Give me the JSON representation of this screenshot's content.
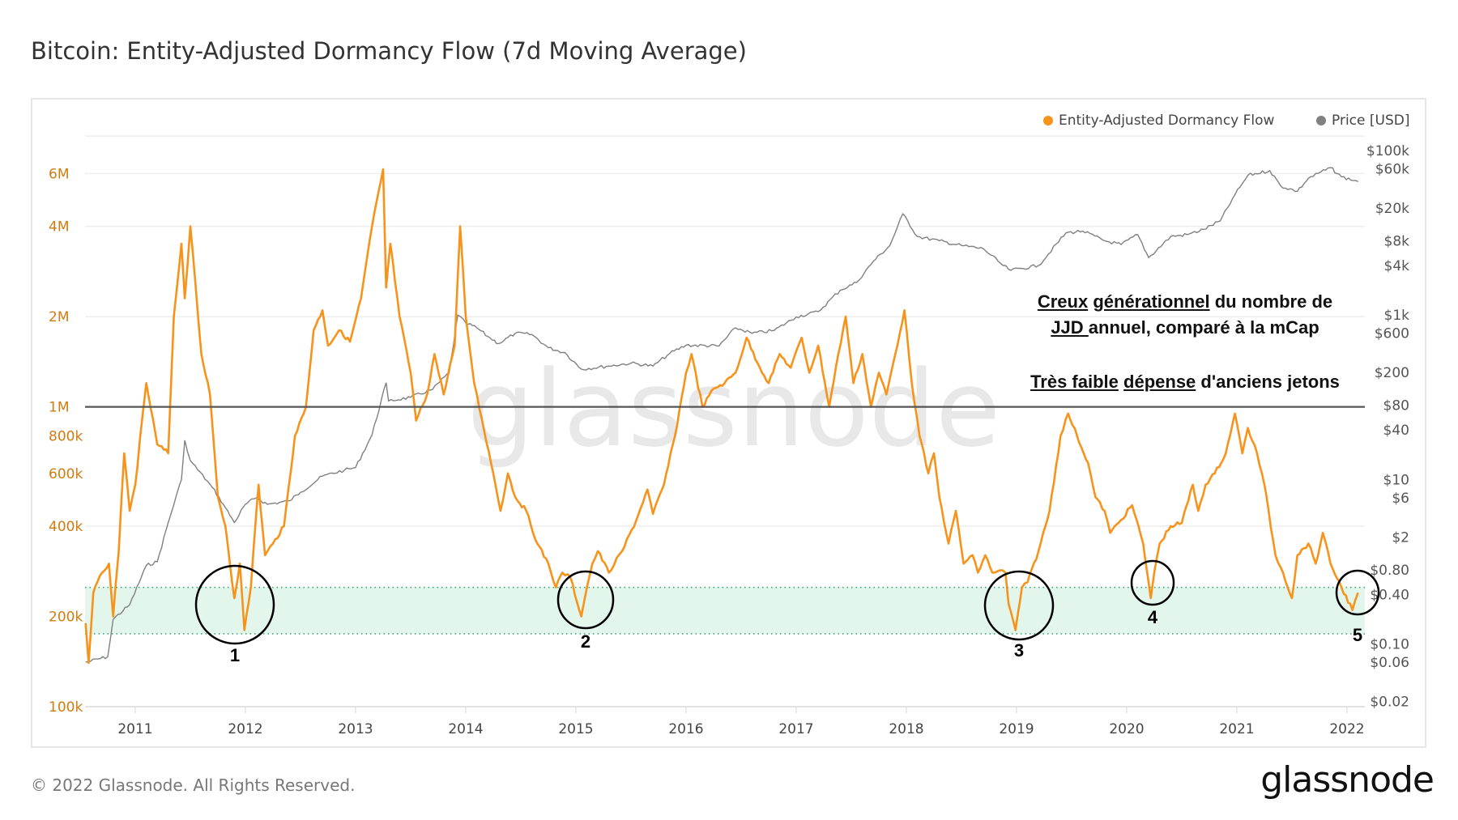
{
  "title": "Bitcoin: Entity-Adjusted Dormancy Flow (7d Moving Average)",
  "footer": "© 2022 Glassnode. All Rights Reserved.",
  "logo": "glassnode",
  "watermark": "glassnode",
  "annotations": {
    "line1_u1": "Creux",
    "line1_u2": "générationnel",
    "line1_rest": " du nombre de",
    "line2_u": "JJD ",
    "line2_rest": "annuel, comparé à la mCap",
    "line3_u1": "Très faible",
    "line3_u2": "dépense",
    "line3_rest": " d'anciens jetons",
    "markers": [
      "1",
      "2",
      "3",
      "4",
      "5"
    ]
  },
  "chart_data": {
    "type": "line",
    "title": "Bitcoin: Entity-Adjusted Dormancy Flow (7d Moving Average)",
    "legend_position": "top-right",
    "grid": true,
    "x_ticks": [
      "2011",
      "2012",
      "2013",
      "2014",
      "2015",
      "2016",
      "2017",
      "2018",
      "2019",
      "2020",
      "2021",
      "2022"
    ],
    "y_left": {
      "scale": "log",
      "range": [
        100000,
        8000000
      ],
      "ticks": [
        [
          "100k",
          100000
        ],
        [
          "200k",
          200000
        ],
        [
          "400k",
          400000
        ],
        [
          "600k",
          600000
        ],
        [
          "800k",
          800000
        ],
        [
          "1M",
          1000000
        ],
        [
          "2M",
          2000000
        ],
        [
          "4M",
          4000000
        ],
        [
          "6M",
          6000000
        ]
      ]
    },
    "y_right": {
      "scale": "log",
      "range": [
        0.02,
        100000
      ],
      "ticks": [
        [
          "$100k",
          100000
        ],
        [
          "$60k",
          60000
        ],
        [
          "$20k",
          20000
        ],
        [
          "$8k",
          8000
        ],
        [
          "$4k",
          4000
        ],
        [
          "$1k",
          1000
        ],
        [
          "$600",
          600
        ],
        [
          "$200",
          200
        ],
        [
          "$80",
          80
        ],
        [
          "$40",
          40
        ],
        [
          "$10",
          10
        ],
        [
          "$6",
          6
        ],
        [
          "$2",
          2
        ],
        [
          "$0.80",
          0.8
        ],
        [
          "$0.40",
          0.4
        ],
        [
          "$0.10",
          0.1
        ],
        [
          "$0.06",
          0.06
        ],
        [
          "$0.02",
          0.02
        ]
      ]
    },
    "reference_line": 1000000,
    "band": [
      175000,
      250000
    ],
    "colors": {
      "dormancy": "#f7931a",
      "price": "#808080",
      "band": "#e3f6ec",
      "band_edge": "#22aa66",
      "reference": "#555555"
    },
    "series": [
      {
        "name": "Entity-Adjusted Dormancy Flow",
        "axis": "left",
        "points": [
          [
            "2010-07-19",
            190000
          ],
          [
            "2010-07-29",
            140000
          ],
          [
            "2010-08-14",
            240000
          ],
          [
            "2010-09-13",
            280000
          ],
          [
            "2010-10-05",
            300000
          ],
          [
            "2010-10-19",
            200000
          ],
          [
            "2010-11-07",
            330000
          ],
          [
            "2010-11-25",
            700000
          ],
          [
            "2010-12-13",
            450000
          ],
          [
            "2011-01-01",
            550000
          ],
          [
            "2011-02-07",
            1200000
          ],
          [
            "2011-03-13",
            750000
          ],
          [
            "2011-04-19",
            700000
          ],
          [
            "2011-05-07",
            2000000
          ],
          [
            "2011-06-02",
            3500000
          ],
          [
            "2011-06-13",
            2300000
          ],
          [
            "2011-07-01",
            4000000
          ],
          [
            "2011-07-19",
            2500000
          ],
          [
            "2011-08-07",
            1500000
          ],
          [
            "2011-09-05",
            1100000
          ],
          [
            "2011-10-01",
            500000
          ],
          [
            "2011-10-26",
            400000
          ],
          [
            "2011-11-25",
            230000
          ],
          [
            "2011-12-13",
            300000
          ],
          [
            "2011-12-28",
            180000
          ],
          [
            "2012-01-19",
            250000
          ],
          [
            "2012-02-07",
            450000
          ],
          [
            "2012-02-14",
            550000
          ],
          [
            "2012-03-05",
            320000
          ],
          [
            "2012-04-01",
            350000
          ],
          [
            "2012-05-07",
            400000
          ],
          [
            "2012-06-13",
            800000
          ],
          [
            "2012-07-19",
            1000000
          ],
          [
            "2012-08-14",
            1800000
          ],
          [
            "2012-09-13",
            2100000
          ],
          [
            "2012-10-01",
            1600000
          ],
          [
            "2012-11-07",
            1800000
          ],
          [
            "2012-12-13",
            1650000
          ],
          [
            "2013-01-19",
            2300000
          ],
          [
            "2013-02-25",
            4000000
          ],
          [
            "2013-04-01",
            6200000
          ],
          [
            "2013-04-11",
            2500000
          ],
          [
            "2013-04-25",
            3500000
          ],
          [
            "2013-05-25",
            2000000
          ],
          [
            "2013-07-01",
            1300000
          ],
          [
            "2013-07-19",
            900000
          ],
          [
            "2013-08-25",
            1100000
          ],
          [
            "2013-09-19",
            1500000
          ],
          [
            "2013-10-19",
            1100000
          ],
          [
            "2013-11-25",
            1600000
          ],
          [
            "2013-12-13",
            4000000
          ],
          [
            "2014-01-01",
            2000000
          ],
          [
            "2014-01-29",
            1200000
          ],
          [
            "2014-02-25",
            900000
          ],
          [
            "2014-04-01",
            600000
          ],
          [
            "2014-04-25",
            450000
          ],
          [
            "2014-05-19",
            600000
          ],
          [
            "2014-06-13",
            500000
          ],
          [
            "2014-07-19",
            450000
          ],
          [
            "2014-08-25",
            350000
          ],
          [
            "2014-10-01",
            300000
          ],
          [
            "2014-10-26",
            250000
          ],
          [
            "2014-11-17",
            280000
          ],
          [
            "2014-12-13",
            270000
          ],
          [
            "2015-01-19",
            200000
          ],
          [
            "2015-02-07",
            250000
          ],
          [
            "2015-02-25",
            300000
          ],
          [
            "2015-03-13",
            330000
          ],
          [
            "2015-04-19",
            280000
          ],
          [
            "2015-06-02",
            330000
          ],
          [
            "2015-07-19",
            420000
          ],
          [
            "2015-08-25",
            530000
          ],
          [
            "2015-09-13",
            440000
          ],
          [
            "2015-10-19",
            550000
          ],
          [
            "2015-11-25",
            800000
          ],
          [
            "2016-01-01",
            1300000
          ],
          [
            "2016-01-19",
            1500000
          ],
          [
            "2016-02-25",
            1000000
          ],
          [
            "2016-04-01",
            1150000
          ],
          [
            "2016-05-07",
            1200000
          ],
          [
            "2016-06-13",
            1300000
          ],
          [
            "2016-07-19",
            1700000
          ],
          [
            "2016-08-25",
            1400000
          ],
          [
            "2016-10-01",
            1200000
          ],
          [
            "2016-11-07",
            1500000
          ],
          [
            "2016-12-13",
            1350000
          ],
          [
            "2017-01-19",
            1700000
          ],
          [
            "2017-02-14",
            1300000
          ],
          [
            "2017-03-13",
            1600000
          ],
          [
            "2017-04-19",
            1000000
          ],
          [
            "2017-05-19",
            1500000
          ],
          [
            "2017-06-13",
            2000000
          ],
          [
            "2017-07-08",
            1200000
          ],
          [
            "2017-08-07",
            1500000
          ],
          [
            "2017-09-05",
            1000000
          ],
          [
            "2017-10-01",
            1300000
          ],
          [
            "2017-10-26",
            1100000
          ],
          [
            "2017-11-25",
            1500000
          ],
          [
            "2017-12-25",
            2100000
          ],
          [
            "2018-01-19",
            1200000
          ],
          [
            "2018-02-14",
            800000
          ],
          [
            "2018-03-13",
            600000
          ],
          [
            "2018-04-01",
            700000
          ],
          [
            "2018-04-19",
            500000
          ],
          [
            "2018-05-19",
            350000
          ],
          [
            "2018-06-13",
            450000
          ],
          [
            "2018-07-08",
            300000
          ],
          [
            "2018-08-07",
            320000
          ],
          [
            "2018-08-25",
            280000
          ],
          [
            "2018-09-19",
            320000
          ],
          [
            "2018-10-12",
            280000
          ],
          [
            "2018-11-07",
            285000
          ],
          [
            "2018-11-25",
            280000
          ],
          [
            "2018-12-05",
            220000
          ],
          [
            "2018-12-28",
            180000
          ],
          [
            "2019-01-19",
            250000
          ],
          [
            "2019-02-07",
            260000
          ],
          [
            "2019-03-13",
            330000
          ],
          [
            "2019-04-19",
            450000
          ],
          [
            "2019-05-25",
            800000
          ],
          [
            "2019-06-20",
            950000
          ],
          [
            "2019-07-19",
            800000
          ],
          [
            "2019-08-25",
            650000
          ],
          [
            "2019-09-19",
            500000
          ],
          [
            "2019-10-19",
            450000
          ],
          [
            "2019-11-07",
            380000
          ],
          [
            "2019-12-13",
            420000
          ],
          [
            "2020-01-19",
            470000
          ],
          [
            "2020-02-25",
            350000
          ],
          [
            "2020-03-20",
            230000
          ],
          [
            "2020-04-01",
            280000
          ],
          [
            "2020-04-19",
            350000
          ],
          [
            "2020-05-25",
            400000
          ],
          [
            "2020-07-01",
            410000
          ],
          [
            "2020-08-07",
            550000
          ],
          [
            "2020-08-25",
            450000
          ],
          [
            "2020-09-19",
            550000
          ],
          [
            "2020-10-19",
            600000
          ],
          [
            "2020-11-25",
            700000
          ],
          [
            "2020-12-25",
            950000
          ],
          [
            "2021-01-19",
            700000
          ],
          [
            "2021-02-07",
            850000
          ],
          [
            "2021-03-07",
            700000
          ],
          [
            "2021-04-01",
            550000
          ],
          [
            "2021-05-07",
            320000
          ],
          [
            "2021-06-02",
            280000
          ],
          [
            "2021-07-01",
            230000
          ],
          [
            "2021-07-19",
            320000
          ],
          [
            "2021-08-25",
            350000
          ],
          [
            "2021-09-19",
            300000
          ],
          [
            "2021-10-12",
            380000
          ],
          [
            "2021-11-07",
            300000
          ],
          [
            "2021-12-13",
            250000
          ],
          [
            "2022-01-19",
            210000
          ],
          [
            "2022-02-07",
            240000
          ]
        ]
      },
      {
        "name": "Price [USD]",
        "axis": "right",
        "points": [
          [
            "2010-07-19",
            0.06
          ],
          [
            "2010-10-01",
            0.07
          ],
          [
            "2010-10-19",
            0.2
          ],
          [
            "2010-12-13",
            0.3
          ],
          [
            "2011-02-07",
            0.9
          ],
          [
            "2011-03-13",
            1
          ],
          [
            "2011-04-19",
            3
          ],
          [
            "2011-06-02",
            10
          ],
          [
            "2011-06-13",
            30
          ],
          [
            "2011-07-01",
            17
          ],
          [
            "2011-09-13",
            8
          ],
          [
            "2011-10-19",
            5
          ],
          [
            "2011-11-25",
            3
          ],
          [
            "2012-01-01",
            5
          ],
          [
            "2012-02-07",
            6
          ],
          [
            "2012-03-13",
            5
          ],
          [
            "2012-05-25",
            5.5
          ],
          [
            "2012-07-01",
            7
          ],
          [
            "2012-09-13",
            11
          ],
          [
            "2012-11-25",
            13
          ],
          [
            "2013-01-01",
            14
          ],
          [
            "2013-02-25",
            35
          ],
          [
            "2013-04-11",
            150
          ],
          [
            "2013-04-19",
            90
          ],
          [
            "2013-07-01",
            100
          ],
          [
            "2013-09-13",
            125
          ],
          [
            "2013-11-07",
            200
          ],
          [
            "2013-12-05",
            1000
          ],
          [
            "2014-01-01",
            800
          ],
          [
            "2014-02-07",
            700
          ],
          [
            "2014-03-13",
            550
          ],
          [
            "2014-04-19",
            450
          ],
          [
            "2014-06-13",
            600
          ],
          [
            "2014-08-07",
            580
          ],
          [
            "2014-10-01",
            400
          ],
          [
            "2014-11-25",
            350
          ],
          [
            "2015-01-19",
            220
          ],
          [
            "2015-04-19",
            240
          ],
          [
            "2015-07-01",
            260
          ],
          [
            "2015-09-13",
            240
          ],
          [
            "2015-11-07",
            340
          ],
          [
            "2016-01-01",
            430
          ],
          [
            "2016-04-19",
            420
          ],
          [
            "2016-06-13",
            700
          ],
          [
            "2016-08-07",
            600
          ],
          [
            "2016-10-19",
            650
          ],
          [
            "2017-01-01",
            950
          ],
          [
            "2017-03-13",
            1100
          ],
          [
            "2017-05-25",
            2000
          ],
          [
            "2017-07-19",
            2500
          ],
          [
            "2017-09-13",
            4500
          ],
          [
            "2017-11-07",
            7000
          ],
          [
            "2017-12-20",
            17000
          ],
          [
            "2018-02-07",
            9000
          ],
          [
            "2018-04-19",
            8000
          ],
          [
            "2018-07-01",
            7000
          ],
          [
            "2018-09-13",
            6400
          ],
          [
            "2018-11-17",
            4000
          ],
          [
            "2018-12-13",
            3500
          ],
          [
            "2019-03-13",
            4000
          ],
          [
            "2019-06-13",
            10000
          ],
          [
            "2019-08-07",
            10500
          ],
          [
            "2019-10-19",
            8000
          ],
          [
            "2019-12-13",
            7200
          ],
          [
            "2020-02-07",
            9500
          ],
          [
            "2020-03-13",
            5000
          ],
          [
            "2020-05-25",
            9000
          ],
          [
            "2020-07-19",
            9500
          ],
          [
            "2020-09-13",
            11000
          ],
          [
            "2020-11-07",
            14000
          ],
          [
            "2020-12-25",
            29000
          ],
          [
            "2021-02-07",
            50000
          ],
          [
            "2021-04-19",
            57000
          ],
          [
            "2021-05-25",
            37000
          ],
          [
            "2021-07-19",
            32000
          ],
          [
            "2021-08-25",
            46000
          ],
          [
            "2021-11-07",
            62000
          ],
          [
            "2021-12-13",
            48000
          ],
          [
            "2022-02-07",
            42000
          ]
        ]
      }
    ]
  },
  "legend": {
    "dormancy": "Entity-Adjusted Dormancy Flow",
    "price": "Price [USD]"
  }
}
